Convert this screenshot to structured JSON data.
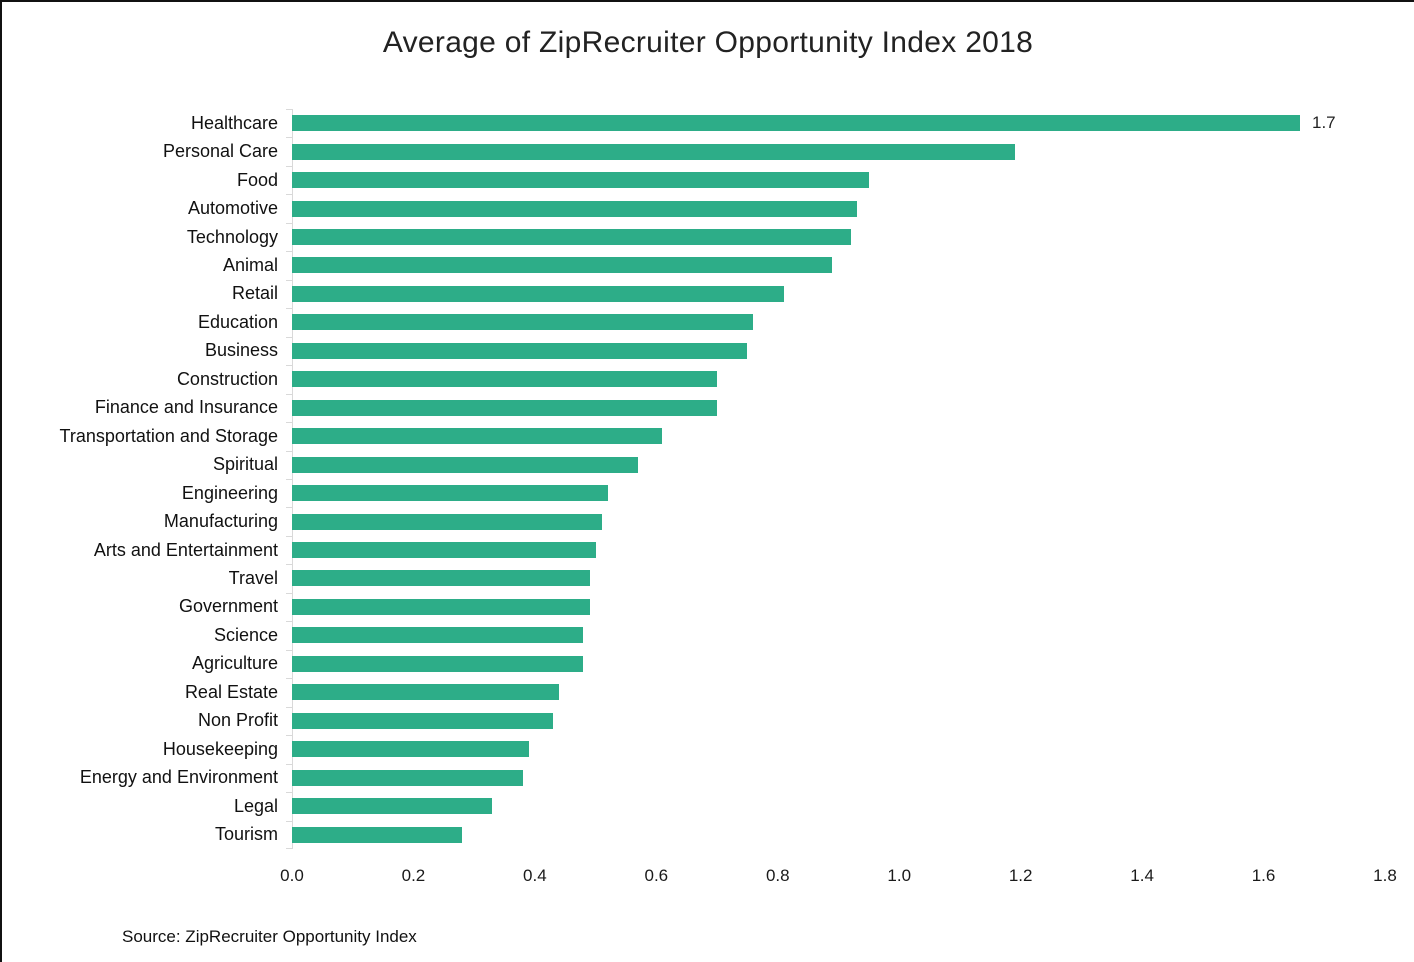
{
  "chart_data": {
    "type": "bar",
    "orientation": "horizontal",
    "title": "Average of ZipRecruiter Opportunity Index 2018",
    "categories": [
      "Healthcare",
      "Personal Care",
      "Food",
      "Automotive",
      "Technology",
      "Animal",
      "Retail",
      "Education",
      "Business",
      "Construction",
      "Finance and Insurance",
      "Transportation and Storage",
      "Spiritual",
      "Engineering",
      "Manufacturing",
      "Arts and Entertainment",
      "Travel",
      "Government",
      "Science",
      "Agriculture",
      "Real Estate",
      "Non Profit",
      "Housekeeping",
      "Energy and Environment",
      "Legal",
      "Tourism"
    ],
    "values": [
      1.66,
      1.19,
      0.95,
      0.93,
      0.92,
      0.89,
      0.81,
      0.76,
      0.75,
      0.7,
      0.7,
      0.61,
      0.57,
      0.52,
      0.51,
      0.5,
      0.49,
      0.49,
      0.48,
      0.48,
      0.44,
      0.43,
      0.39,
      0.38,
      0.33,
      0.28
    ],
    "annotations": [
      {
        "index": 0,
        "text": "1.7"
      }
    ],
    "xlabel": "",
    "ylabel": "",
    "xlim": [
      0,
      1.8
    ],
    "xticks": [
      "0.0",
      "0.2",
      "0.4",
      "0.6",
      "0.8",
      "1.0",
      "1.2",
      "1.4",
      "1.6",
      "1.8"
    ],
    "grid": false,
    "legend": false,
    "bar_color": "#2DAD88",
    "axis_color": "#D9D9D9"
  },
  "source_note": "Source: ZipRecruiter Opportunity Index"
}
